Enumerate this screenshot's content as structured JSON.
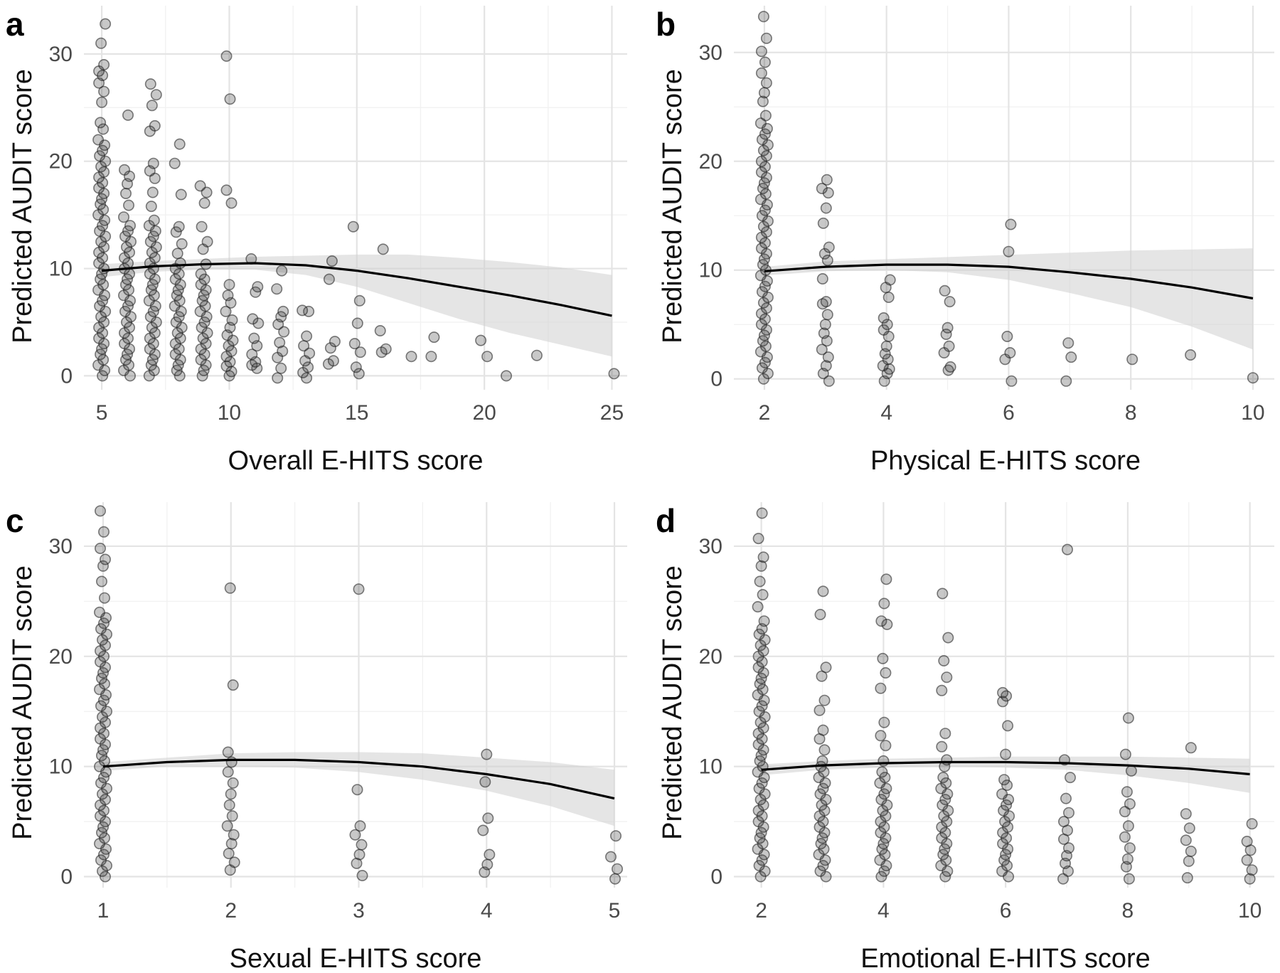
{
  "chart_data": [
    {
      "type": "scatter",
      "panel": "a",
      "xlabel": "Overall E-HITS score",
      "ylabel": "Predicted AUDIT score",
      "xlim": [
        4.3,
        25.6
      ],
      "ylim": [
        -1.3,
        34.5
      ],
      "xticks": [
        5,
        10,
        15,
        20,
        25
      ],
      "yticks": [
        0,
        10,
        20,
        30
      ],
      "fit": {
        "x": [
          5,
          7,
          9,
          11,
          13,
          15,
          17,
          19,
          21,
          23,
          25
        ],
        "y": [
          9.8,
          10.2,
          10.4,
          10.5,
          10.3,
          9.8,
          9.1,
          8.3,
          7.5,
          6.6,
          5.6
        ],
        "lower": [
          9.2,
          9.7,
          9.9,
          9.9,
          9.4,
          8.3,
          6.8,
          5.3,
          4.0,
          2.9,
          1.8
        ],
        "upper": [
          10.4,
          10.7,
          10.9,
          11.1,
          11.2,
          11.3,
          11.3,
          11.0,
          10.6,
          10.1,
          9.4
        ]
      },
      "columns": [
        {
          "x": 5,
          "y": [
            0,
            0.5,
            1,
            1.5,
            2,
            2.5,
            3,
            3.5,
            4,
            4.5,
            5,
            5.5,
            6,
            6.5,
            7,
            7.5,
            8,
            8.5,
            9,
            9.5,
            10,
            10.5,
            11,
            11.5,
            12,
            12.5,
            13,
            13.5,
            14,
            14.5,
            15,
            15.5,
            16,
            16.5,
            17,
            17.5,
            18,
            18.5,
            19,
            19.5,
            20,
            20.5,
            21,
            21.5,
            22,
            23,
            23.6,
            25.5,
            26.5,
            27.3,
            28,
            28.4,
            29,
            31,
            32.8
          ]
        },
        {
          "x": 6,
          "y": [
            0,
            0.5,
            1,
            1.5,
            2,
            2.5,
            3,
            3.5,
            4,
            4.5,
            5,
            5.5,
            6,
            6.5,
            7,
            7.5,
            8,
            8.5,
            9,
            9.5,
            10,
            10.5,
            11,
            11.5,
            12,
            12.5,
            13,
            13.5,
            14,
            14.8,
            15.9,
            17,
            17.9,
            18.6,
            19.2,
            24.3
          ]
        },
        {
          "x": 7,
          "y": [
            0,
            0.5,
            1,
            1.5,
            2,
            2.5,
            3,
            3.5,
            4,
            4.5,
            5,
            5.5,
            6,
            6.5,
            7,
            7.5,
            8,
            8.5,
            9,
            9.5,
            10,
            10.5,
            11,
            11.5,
            12,
            12.5,
            13,
            13.5,
            14,
            14.5,
            15.8,
            17.1,
            18.4,
            19.1,
            19.8,
            22.8,
            23.3,
            25.2,
            26.2,
            27.2
          ]
        },
        {
          "x": 8,
          "y": [
            0,
            0.5,
            1,
            1.5,
            2,
            2.5,
            3,
            3.5,
            4,
            4.5,
            5,
            5.5,
            6,
            6.5,
            7,
            7.5,
            8,
            8.5,
            9,
            9.5,
            10,
            10.5,
            11.4,
            12.3,
            13.4,
            13.9,
            16.9,
            19.8,
            21.6
          ]
        },
        {
          "x": 9,
          "y": [
            0,
            0.5,
            1,
            1.5,
            2,
            2.5,
            3,
            3.5,
            4,
            4.5,
            5,
            5.5,
            6,
            6.5,
            7,
            7.5,
            8,
            8.5,
            9,
            9.5,
            10.4,
            11.8,
            12.5,
            13.9,
            16.1,
            17.1,
            17.7
          ]
        },
        {
          "x": 10,
          "y": [
            0,
            0.4,
            0.9,
            1.3,
            1.8,
            2.3,
            2.8,
            3.3,
            3.8,
            4.5,
            5.2,
            6,
            6.8,
            7.5,
            8.5,
            16.1,
            17.3,
            25.8,
            29.8
          ]
        },
        {
          "x": 11,
          "y": [
            0.7,
            1.0,
            1.3,
            2.0,
            2.8,
            3.5,
            4.9,
            5.3,
            7.8,
            8.3,
            10.9
          ]
        },
        {
          "x": 12,
          "y": [
            -0.2,
            0.7,
            1.7,
            2.3,
            3.1,
            4.1,
            4.8,
            5.5,
            6.0,
            8.1,
            9.8
          ]
        },
        {
          "x": 13,
          "y": [
            -0.2,
            0.3,
            0.8,
            1.4,
            2.1,
            2.8,
            3.7,
            6.0,
            6.1
          ]
        },
        {
          "x": 14,
          "y": [
            1.1,
            1.4,
            2.6,
            3.2,
            9.0,
            10.7
          ]
        },
        {
          "x": 15,
          "y": [
            0.2,
            0.8,
            2.2,
            3.0,
            4.9,
            7.0,
            13.9
          ]
        },
        {
          "x": 16,
          "y": [
            2.2,
            2.5,
            4.2,
            11.8
          ]
        },
        {
          "x": 17,
          "y": [
            1.8
          ]
        },
        {
          "x": 18,
          "y": [
            1.8,
            3.6
          ]
        },
        {
          "x": 20,
          "y": [
            1.8,
            3.3
          ]
        },
        {
          "x": 21,
          "y": [
            0
          ]
        },
        {
          "x": 22,
          "y": [
            1.9
          ]
        },
        {
          "x": 25,
          "y": [
            0.2
          ]
        }
      ]
    },
    {
      "type": "scatter",
      "panel": "b",
      "xlabel": "Physical E-HITS score",
      "ylabel": "Predicted AUDIT score",
      "xlim": [
        1.5,
        10.35
      ],
      "ylim": [
        -1.0,
        34.3
      ],
      "xticks": [
        2,
        4,
        6,
        8,
        10
      ],
      "yticks": [
        0,
        10,
        20,
        30
      ],
      "fit": {
        "x": [
          2,
          3,
          4,
          5,
          6,
          7,
          8,
          9,
          10
        ],
        "y": [
          9.9,
          10.3,
          10.5,
          10.5,
          10.3,
          9.8,
          9.2,
          8.4,
          7.4
        ],
        "lower": [
          9.5,
          9.9,
          10.0,
          9.8,
          9.1,
          7.9,
          6.6,
          4.8,
          2.7
        ],
        "upper": [
          10.3,
          10.8,
          11.0,
          11.2,
          11.4,
          11.6,
          11.8,
          11.9,
          12.0
        ]
      },
      "columns": [
        {
          "x": 2,
          "y": [
            0,
            0.5,
            1,
            1.5,
            2,
            2.5,
            3,
            3.5,
            4,
            4.5,
            5,
            5.5,
            6,
            6.5,
            7,
            7.5,
            8,
            8.5,
            9,
            9.5,
            10,
            10.5,
            11,
            11.5,
            12,
            12.5,
            13,
            13.5,
            14,
            14.5,
            15,
            15.5,
            16,
            16.5,
            17,
            17.5,
            18,
            18.5,
            19,
            19.5,
            20,
            20.5,
            21,
            21.5,
            22,
            22.5,
            23,
            23.5,
            24.2,
            25.5,
            26.3,
            27.2,
            28.1,
            29.1,
            30.1,
            31.3,
            33.3
          ]
        },
        {
          "x": 3,
          "y": [
            -0.2,
            0.5,
            1.2,
            2.0,
            2.7,
            3.5,
            4.2,
            5.0,
            5.9,
            6.9,
            7.1,
            9.2,
            10.9,
            11.5,
            12.1,
            14.3,
            15.7,
            17.1,
            17.5,
            18.3
          ]
        },
        {
          "x": 4,
          "y": [
            -0.2,
            0.5,
            0.9,
            1.2,
            1.8,
            2.3,
            3.0,
            3.9,
            4.5,
            5.0,
            5.6,
            7.5,
            8.4,
            9.1
          ]
        },
        {
          "x": 5,
          "y": [
            0.8,
            1.1,
            2.4,
            3.0,
            4.1,
            4.7,
            7.1,
            8.1
          ]
        },
        {
          "x": 6,
          "y": [
            -0.2,
            1.8,
            2.4,
            3.9,
            11.7,
            14.2
          ]
        },
        {
          "x": 7,
          "y": [
            -0.2,
            2.0,
            3.3
          ]
        },
        {
          "x": 8,
          "y": [
            1.8
          ]
        },
        {
          "x": 9,
          "y": [
            2.2
          ]
        },
        {
          "x": 10,
          "y": [
            0.1
          ]
        }
      ]
    },
    {
      "type": "scatter",
      "panel": "c",
      "xlabel": "Sexual E-HITS score",
      "ylabel": "Predicted AUDIT score",
      "xlim": [
        0.85,
        5.1
      ],
      "ylim": [
        -1.0,
        34.0
      ],
      "xticks": [
        1,
        2,
        3,
        4,
        5
      ],
      "yticks": [
        0,
        10,
        20,
        30
      ],
      "fit": {
        "x": [
          1,
          1.5,
          2,
          2.5,
          3,
          3.5,
          4,
          4.5,
          5
        ],
        "y": [
          10.0,
          10.4,
          10.6,
          10.6,
          10.4,
          10.0,
          9.3,
          8.4,
          7.1
        ],
        "lower": [
          9.6,
          10.0,
          10.0,
          9.9,
          9.5,
          8.8,
          7.8,
          6.4,
          4.6
        ],
        "upper": [
          10.4,
          10.8,
          11.2,
          11.3,
          11.3,
          11.2,
          10.8,
          10.4,
          9.7
        ]
      },
      "columns": [
        {
          "x": 1,
          "y": [
            0,
            0.5,
            1,
            1.5,
            2,
            2.5,
            3,
            3.5,
            4,
            4.5,
            5,
            5.5,
            6,
            6.5,
            7,
            7.5,
            8,
            8.5,
            9,
            9.5,
            10,
            10.5,
            11,
            11.5,
            12,
            12.5,
            13,
            13.5,
            14,
            14.5,
            15,
            15.5,
            16,
            16.5,
            17,
            17.5,
            18,
            18.5,
            19,
            19.5,
            20,
            20.5,
            21,
            21.5,
            22,
            22.5,
            23,
            23.5,
            24,
            25.3,
            26.8,
            28.2,
            28.8,
            29.8,
            31.3,
            33.2
          ]
        },
        {
          "x": 2,
          "y": [
            0.6,
            1.3,
            2.1,
            3.0,
            3.8,
            4.6,
            5.5,
            6.5,
            7.5,
            8.5,
            9.5,
            10.4,
            11.3,
            17.4,
            26.2
          ]
        },
        {
          "x": 3,
          "y": [
            0.1,
            1.2,
            2.0,
            2.9,
            3.8,
            4.6,
            7.9,
            26.1
          ]
        },
        {
          "x": 4,
          "y": [
            0.4,
            1.1,
            2.0,
            4.2,
            5.3,
            8.6,
            11.1
          ]
        },
        {
          "x": 5,
          "y": [
            -0.2,
            0.7,
            1.8,
            3.7
          ]
        }
      ]
    },
    {
      "type": "scatter",
      "panel": "d",
      "xlabel": "Emotional E-HITS score",
      "ylabel": "Predicted AUDIT score",
      "xlim": [
        1.55,
        10.4
      ],
      "ylim": [
        -1.0,
        34.0
      ],
      "xticks": [
        2,
        4,
        6,
        8,
        10
      ],
      "yticks": [
        0,
        10,
        20,
        30
      ],
      "fit": {
        "x": [
          2,
          3,
          4,
          5,
          6,
          7,
          8,
          9,
          10
        ],
        "y": [
          9.7,
          10.1,
          10.3,
          10.4,
          10.4,
          10.3,
          10.1,
          9.8,
          9.3
        ],
        "lower": [
          9.2,
          9.7,
          9.9,
          10.0,
          9.9,
          9.7,
          9.2,
          8.5,
          7.6
        ],
        "upper": [
          10.2,
          10.5,
          10.7,
          10.8,
          10.9,
          10.9,
          10.9,
          10.8,
          10.7
        ]
      },
      "columns": [
        {
          "x": 2,
          "y": [
            0,
            0.5,
            1,
            1.5,
            2,
            2.5,
            3,
            3.5,
            4,
            4.5,
            5,
            5.5,
            6,
            6.5,
            7,
            7.5,
            8,
            8.5,
            9,
            9.5,
            10,
            10.5,
            11,
            11.5,
            12,
            12.5,
            13,
            13.5,
            14,
            14.5,
            15,
            15.5,
            16,
            16.5,
            17,
            17.5,
            18,
            18.5,
            19,
            19.5,
            20,
            20.5,
            21,
            21.5,
            22,
            22.5,
            23.2,
            24.5,
            25.6,
            26.8,
            28.2,
            29.0,
            30.7,
            33.0
          ]
        },
        {
          "x": 3,
          "y": [
            0,
            0.5,
            1,
            1.5,
            2,
            2.5,
            3,
            3.5,
            4,
            4.5,
            5,
            5.5,
            6,
            6.5,
            7,
            7.5,
            8,
            8.5,
            9,
            9.5,
            10,
            10.5,
            11.5,
            12.5,
            13.3,
            15.1,
            16.0,
            18.2,
            19.0,
            23.8,
            25.9
          ]
        },
        {
          "x": 4,
          "y": [
            0,
            0.5,
            1,
            1.5,
            2,
            2.5,
            3,
            3.5,
            4,
            4.5,
            5,
            5.5,
            6,
            6.5,
            7,
            7.5,
            8,
            8.5,
            9,
            9.5,
            10.5,
            11.9,
            12.8,
            14.0,
            17.1,
            18.5,
            19.8,
            22.9,
            23.2,
            24.8,
            27.0
          ]
        },
        {
          "x": 5,
          "y": [
            0,
            0.5,
            1,
            1.5,
            2,
            2.5,
            3,
            3.5,
            4,
            4.5,
            5,
            5.5,
            6,
            6.5,
            7,
            7.5,
            8,
            8.5,
            9,
            10.0,
            10.6,
            11.8,
            13.0,
            16.9,
            18.1,
            19.6,
            21.7,
            25.7
          ]
        },
        {
          "x": 6,
          "y": [
            0,
            0.5,
            1,
            1.5,
            2,
            2.5,
            3,
            3.5,
            4,
            4.5,
            5,
            5.5,
            6,
            6.5,
            7,
            7.5,
            8.3,
            8.8,
            11.1,
            13.7,
            15.9,
            16.4,
            16.7
          ]
        },
        {
          "x": 7,
          "y": [
            -0.2,
            0.5,
            1.2,
            1.9,
            2.6,
            3.4,
            4.2,
            5.0,
            5.8,
            7.1,
            9.0,
            10.6,
            29.7
          ]
        },
        {
          "x": 8,
          "y": [
            -0.2,
            0.9,
            1.6,
            2.6,
            3.6,
            4.6,
            5.9,
            6.6,
            7.7,
            9.6,
            11.1,
            14.4
          ]
        },
        {
          "x": 9,
          "y": [
            -0.1,
            1.4,
            2.3,
            3.3,
            4.4,
            5.7,
            11.7
          ]
        },
        {
          "x": 10,
          "y": [
            -0.2,
            0.6,
            1.5,
            2.4,
            3.2,
            4.8
          ]
        }
      ]
    }
  ]
}
